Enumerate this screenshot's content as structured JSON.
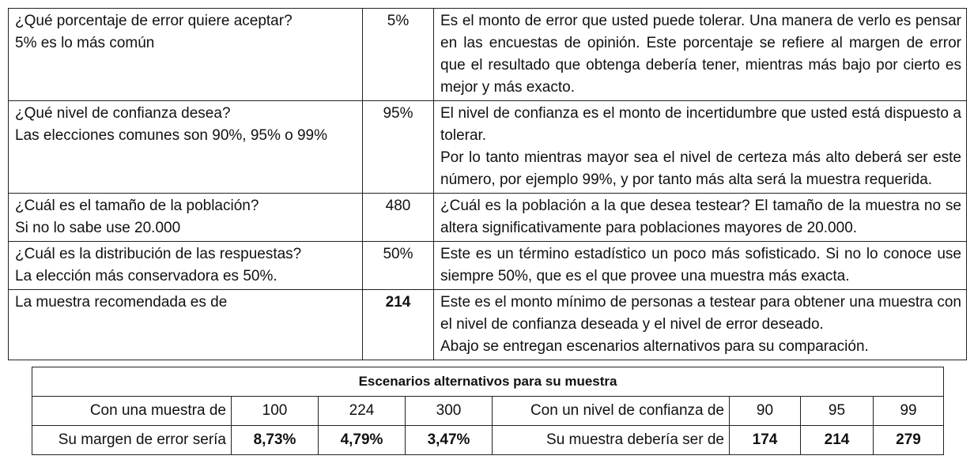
{
  "main_rows": [
    {
      "question_lines": [
        "¿Qué porcentaje de error quiere aceptar?",
        "5% es lo más común"
      ],
      "value": "5%",
      "description_lines": [
        "Es el monto de error que usted puede tolerar. Una manera de verlo es pensar en las encuestas de opinión. Este porcentaje se refiere al margen de error que el resultado que obtenga debería tener, mientras más bajo por cierto es mejor y más exacto."
      ]
    },
    {
      "question_lines": [
        "¿Qué nivel de confianza desea?",
        "Las elecciones comunes son 90%, 95% o 99%"
      ],
      "value": "95%",
      "description_lines": [
        "El nivel de confianza es el monto de incertidumbre que usted está dispuesto a tolerar.",
        "Por lo tanto mientras mayor sea el nivel de certeza más alto deberá ser este número, por ejemplo 99%, y por tanto más alta será la muestra requerida."
      ]
    },
    {
      "question_lines": [
        "¿Cuál es el tamaño de la población?",
        "Si no lo sabe use 20.000"
      ],
      "value": "480",
      "description_lines": [
        "¿Cuál es la población a la que desea testear? El tamaño de la muestra no se altera significativamente para poblaciones mayores de 20.000."
      ]
    },
    {
      "question_lines": [
        "¿Cuál es la distribución de las respuestas?",
        "La elección más conservadora es 50%."
      ],
      "value": "50%",
      "description_lines": [
        "Este es un término estadístico un poco más sofisticado. Si no lo conoce use siempre 50%, que es el que provee una muestra más exacta."
      ]
    },
    {
      "question_lines": [
        "La muestra recomendada es de"
      ],
      "value": "214",
      "description_lines": [
        "Este es el monto mínimo de personas a testear para obtener una muestra con el nivel de confianza deseada y el nivel de error deseado.",
        "Abajo se entregan escenarios alternativos para su comparación."
      ]
    }
  ],
  "scenarios": {
    "title": "Escenarios alternativos para su muestra",
    "row1": {
      "sample_label": "Con una muestra de",
      "samples": [
        "100",
        "224",
        "300"
      ],
      "confidence_label": "Con un nivel de confianza de",
      "confidences": [
        "90",
        "95",
        "99"
      ]
    },
    "row2": {
      "error_label": "Su margen de error sería",
      "errors": [
        "8,73%",
        "4,79%",
        "3,47%"
      ],
      "sample_needed_label": "Su muestra debería ser de",
      "samples_needed": [
        "174",
        "214",
        "279"
      ]
    }
  }
}
